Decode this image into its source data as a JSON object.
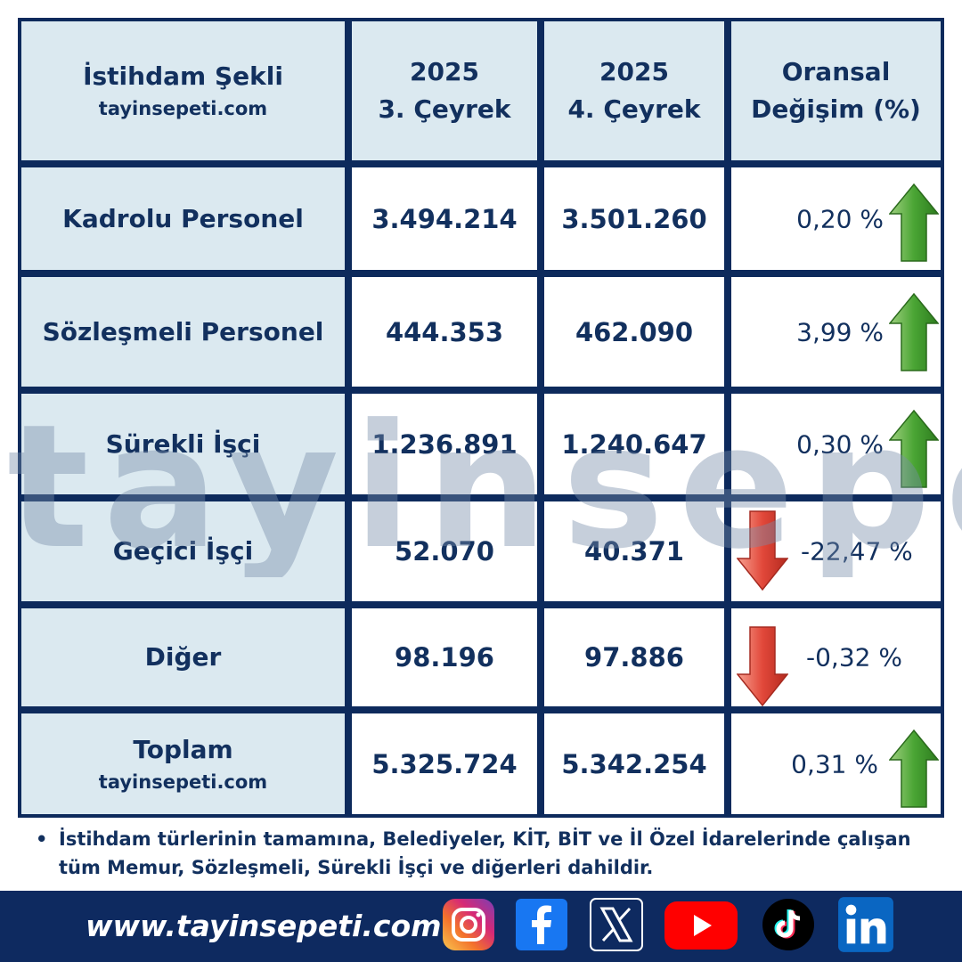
{
  "header": {
    "col1_title": "İstihdam Şekli",
    "col1_sub": "tayinsepeti.com",
    "col2_line1": "2025",
    "col2_line2": "3. Çeyrek",
    "col3_line1": "2025",
    "col3_line2": "4. Çeyrek",
    "col4_line1": "Oransal",
    "col4_line2": "Değişim (%)"
  },
  "rows": [
    {
      "label": "Kadrolu Personel",
      "q3": "3.494.214",
      "q4": "3.501.260",
      "change": "0,20 %",
      "direction": "up"
    },
    {
      "label": "Sözleşmeli Personel",
      "q3": "444.353",
      "q4": "462.090",
      "change": "3,99 %",
      "direction": "up"
    },
    {
      "label": "Sürekli İşçi",
      "q3": "1.236.891",
      "q4": "1.240.647",
      "change": "0,30 %",
      "direction": "up"
    },
    {
      "label": "Geçici İşçi",
      "q3": "52.070",
      "q4": "40.371",
      "change": "-22,47 %",
      "direction": "down"
    },
    {
      "label": "Diğer",
      "q3": "98.196",
      "q4": "97.886",
      "change": "-0,32 %",
      "direction": "down"
    },
    {
      "label": "Toplam",
      "label_sub": "tayinsepeti.com",
      "q3": "5.325.724",
      "q4": "5.342.254",
      "change": "0,31 %",
      "direction": "up"
    }
  ],
  "watermark": "tayinsepeti",
  "note": {
    "bullet": "•",
    "text": "İstihdam türlerinin tamamına, Belediyeler, KİT, BİT ve İl Özel İdarelerinde çalışan tüm Memur, Sözleşmeli, Sürekli İşçi ve diğerleri dahildir."
  },
  "footer": {
    "website": "www.tayinsepeti.com",
    "social_icons": [
      "instagram-icon",
      "facebook-icon",
      "x-icon",
      "youtube-icon",
      "tiktok-icon",
      "linkedin-icon"
    ]
  },
  "colors": {
    "navy": "#0e2a60",
    "header_fill": "#dbe9f0",
    "text": "#12305e",
    "arrow_up": "#3f9b2c",
    "arrow_down": "#e2483a"
  }
}
